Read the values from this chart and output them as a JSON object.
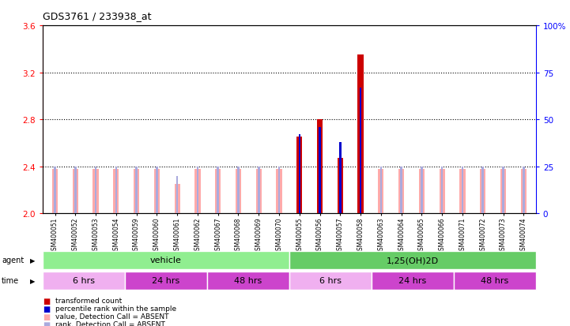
{
  "title": "GDS3761 / 233938_at",
  "samples": [
    "GSM400051",
    "GSM400052",
    "GSM400053",
    "GSM400054",
    "GSM400059",
    "GSM400060",
    "GSM400061",
    "GSM400062",
    "GSM400067",
    "GSM400068",
    "GSM400069",
    "GSM400070",
    "GSM400055",
    "GSM400056",
    "GSM400057",
    "GSM400058",
    "GSM400063",
    "GSM400064",
    "GSM400065",
    "GSM400066",
    "GSM400071",
    "GSM400072",
    "GSM400073",
    "GSM400074"
  ],
  "transformed_count": [
    2.38,
    2.38,
    2.38,
    2.38,
    2.38,
    2.38,
    2.25,
    2.38,
    2.38,
    2.38,
    2.38,
    2.38,
    2.65,
    2.8,
    2.47,
    3.35,
    2.38,
    2.38,
    2.38,
    2.38,
    2.38,
    2.38,
    2.38,
    2.38
  ],
  "percentile_rank": [
    25,
    25,
    25,
    25,
    25,
    25,
    20,
    25,
    25,
    25,
    25,
    25,
    42,
    46,
    38,
    67,
    25,
    25,
    25,
    25,
    25,
    25,
    25,
    25
  ],
  "is_absent": [
    true,
    true,
    true,
    true,
    true,
    true,
    true,
    true,
    true,
    true,
    true,
    true,
    false,
    false,
    false,
    false,
    true,
    true,
    true,
    true,
    true,
    true,
    true,
    true
  ],
  "gsm400054_has_absent_rank": true,
  "absent_rank_indices": [
    3
  ],
  "agent_groups": [
    {
      "label": "vehicle",
      "start": 0,
      "end": 11,
      "color": "#90EE90"
    },
    {
      "label": "1,25(OH)2D",
      "start": 12,
      "end": 23,
      "color": "#66CC66"
    }
  ],
  "time_groups": [
    {
      "label": "6 hrs",
      "start": 0,
      "end": 3,
      "color": "#F0A0F0"
    },
    {
      "label": "24 hrs",
      "start": 4,
      "end": 7,
      "color": "#CC66CC"
    },
    {
      "label": "48 hrs",
      "start": 8,
      "end": 11,
      "color": "#CC66CC"
    },
    {
      "label": "6 hrs",
      "start": 12,
      "end": 15,
      "color": "#F0A0F0"
    },
    {
      "label": "24 hrs",
      "start": 16,
      "end": 19,
      "color": "#CC66CC"
    },
    {
      "label": "48 hrs",
      "start": 20,
      "end": 23,
      "color": "#CC66CC"
    }
  ],
  "ylim_left": [
    2.0,
    3.6
  ],
  "ylim_right": [
    0,
    100
  ],
  "yticks_left": [
    2.0,
    2.4,
    2.8,
    3.2,
    3.6
  ],
  "yticks_right": [
    0,
    25,
    50,
    75,
    100
  ],
  "bar_color_present": "#CC0000",
  "bar_color_absent": "#FFAAAA",
  "rank_color_present": "#0000CC",
  "rank_color_absent": "#AAAADD",
  "bg_color": "#FFFFFF",
  "grid_dotted_color": "#000000"
}
